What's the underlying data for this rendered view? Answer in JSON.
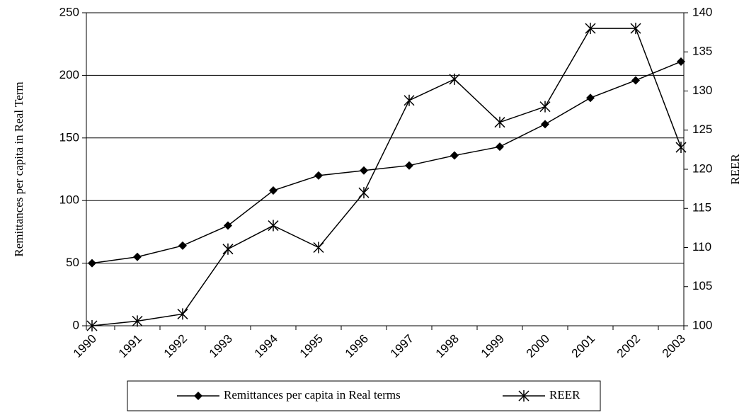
{
  "chart_data": {
    "type": "line",
    "categories": [
      "1990",
      "1991",
      "1992",
      "1993",
      "1994",
      "1995",
      "1996",
      "1997",
      "1998",
      "1999",
      "2000",
      "2001",
      "2002",
      "2003"
    ],
    "y_label": "Remittances per capita in Real Term",
    "y2_label": "REER",
    "ylim": [
      0,
      250
    ],
    "yticks": [
      0,
      50,
      100,
      150,
      200,
      250
    ],
    "y2lim": [
      100,
      140
    ],
    "y2ticks": [
      100,
      105,
      110,
      115,
      120,
      125,
      130,
      135,
      140
    ],
    "grid": true,
    "legend": "bottom",
    "series": [
      {
        "name": "Remittances per capita in Real terms",
        "color": "#000000",
        "marker": "diamond",
        "values": [
          50,
          55,
          64,
          80,
          108,
          120,
          124,
          128,
          136,
          143,
          161,
          182,
          196,
          211
        ]
      },
      {
        "name": "REER",
        "color": "#000000",
        "marker": "asterisk",
        "axis": "y2",
        "values": [
          100,
          100.6,
          101.5,
          109.8,
          112.8,
          110,
          117,
          128.8,
          131.5,
          126,
          128,
          138,
          138,
          122.8
        ]
      }
    ]
  }
}
